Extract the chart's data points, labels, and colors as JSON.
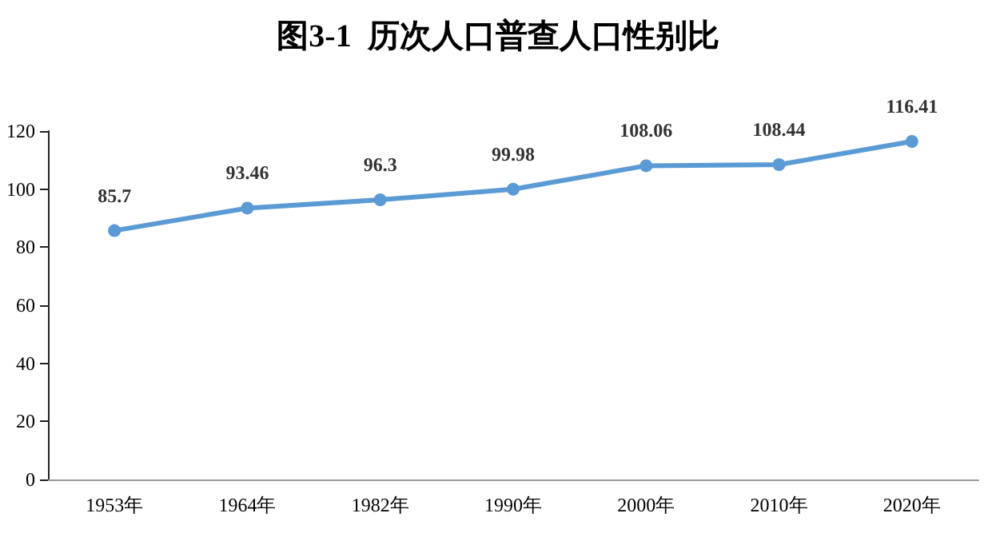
{
  "chart_data": {
    "type": "line",
    "title": "图3-1  历次人口普查人口性别比",
    "categories": [
      "1953年",
      "1964年",
      "1982年",
      "1990年",
      "2000年",
      "2010年",
      "2020年"
    ],
    "series": [
      {
        "color": "#5b9bd5",
        "values": [
          85.7,
          93.46,
          96.3,
          99.98,
          108.06,
          108.44,
          116.41
        ]
      }
    ],
    "ylim": [
      0,
      120
    ],
    "yticks": [
      0,
      20,
      40,
      60,
      80,
      100,
      120
    ],
    "grid": false,
    "marker": "circle",
    "line_style": "solid",
    "data_labels": true
  }
}
